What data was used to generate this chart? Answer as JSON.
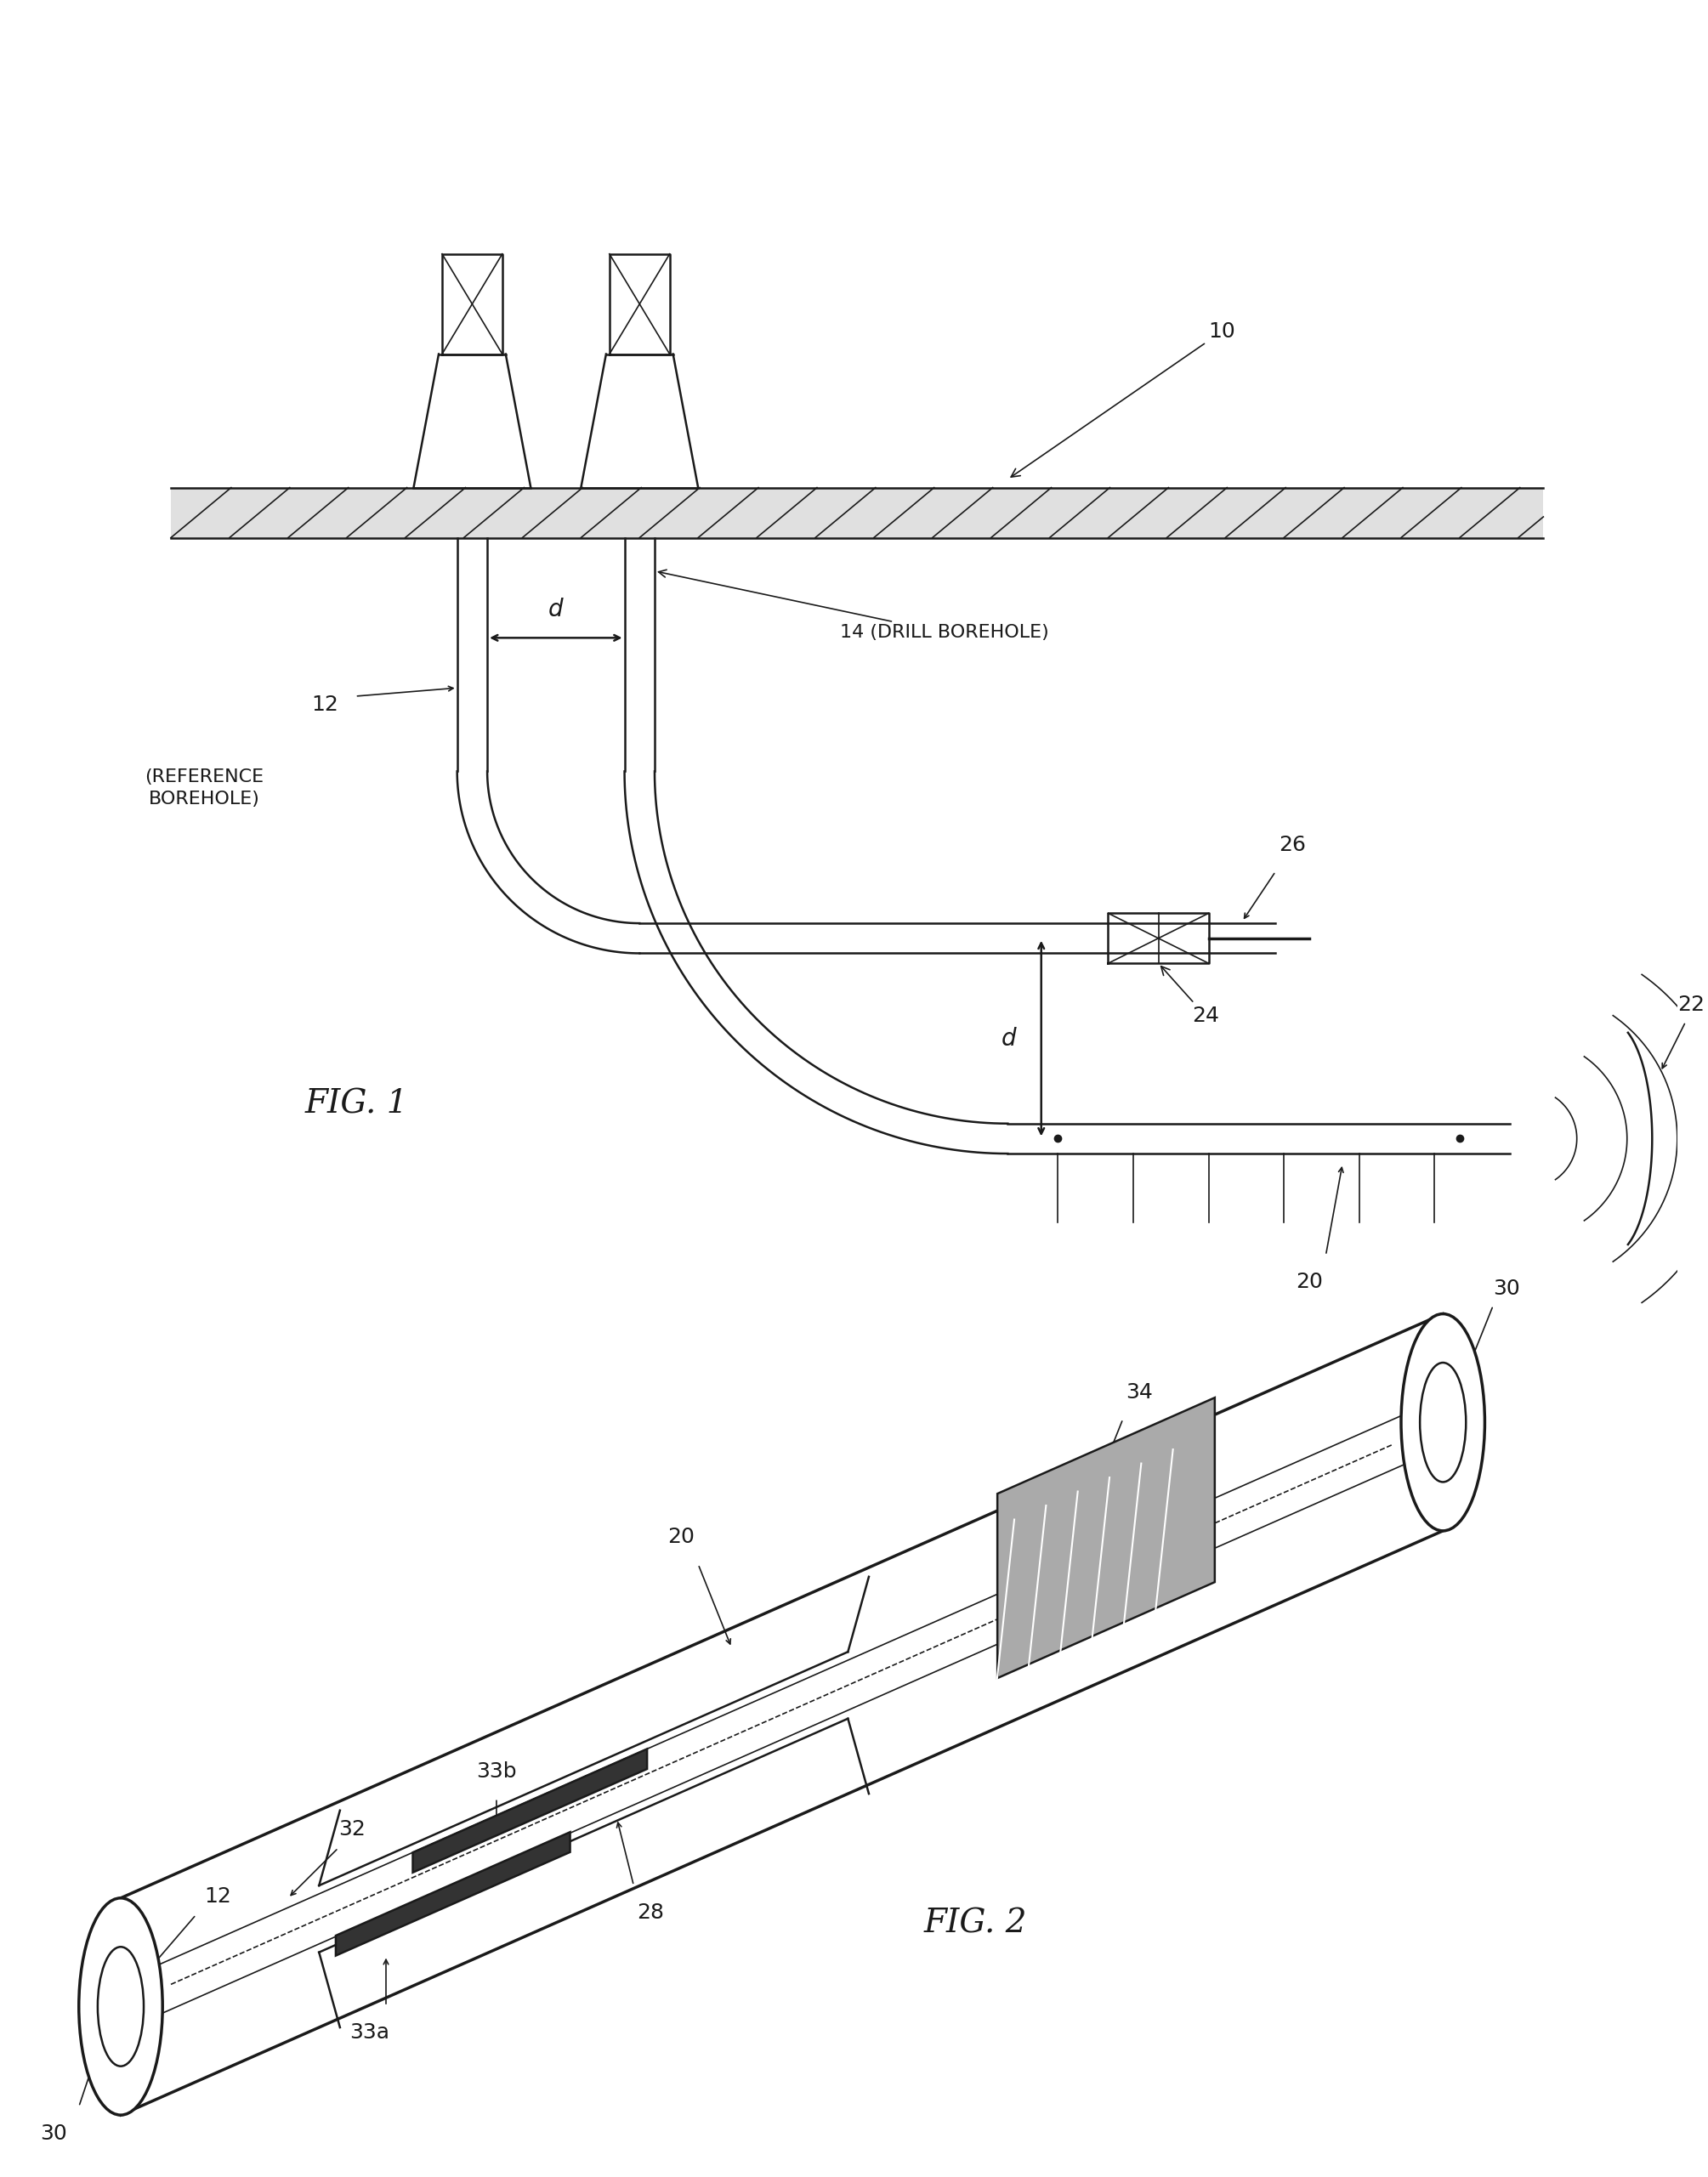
{
  "fig_width": 20.09,
  "fig_height": 25.61,
  "background_color": "#ffffff",
  "line_color": "#1a1a1a",
  "line_width": 1.8,
  "thin_line": 1.2,
  "thick_line": 2.5,
  "font_size": 18,
  "label_font_size": 16,
  "fig_label_font_size": 28,
  "annotations": {
    "fig1_label": "FIG. 1",
    "fig2_label": "FIG. 2",
    "ref_borehole": "(REFERENCE\nBOREHOLE)",
    "drill_borehole": "14 (DRILL BOREHOLE)",
    "d_label": "d"
  }
}
